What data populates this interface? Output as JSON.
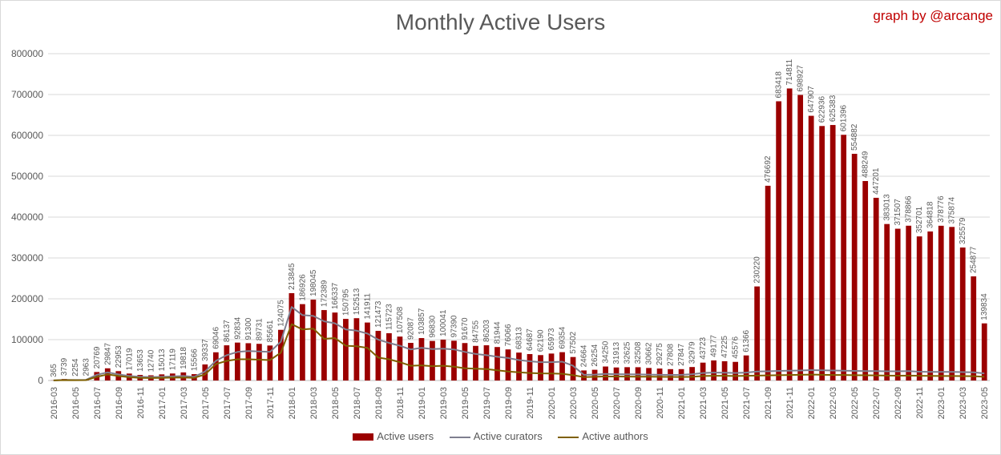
{
  "header": {
    "title": "Monthly Active Users",
    "credit": "graph by @arcange"
  },
  "colors": {
    "bars": "#9b0000",
    "curators": "#7f7f8f",
    "authors": "#7f6000",
    "grid": "#d9d9d9",
    "text": "#595959"
  },
  "legend": {
    "users": "Active users",
    "curators": "Active curators",
    "authors": "Active authors"
  },
  "chart_data": {
    "type": "bar",
    "title": "Monthly Active Users",
    "ylim": [
      0,
      800000
    ],
    "yticks": [
      "0",
      "100000",
      "200000",
      "300000",
      "400000",
      "500000",
      "600000",
      "700000",
      "800000"
    ],
    "grid": true,
    "legend_position": "bottom",
    "categories": [
      "2016-03",
      "2016-04",
      "2016-05",
      "2016-06",
      "2016-07",
      "2016-08",
      "2016-09",
      "2016-10",
      "2016-11",
      "2016-12",
      "2017-01",
      "2017-02",
      "2017-03",
      "2017-04",
      "2017-05",
      "2017-06",
      "2017-07",
      "2017-08",
      "2017-09",
      "2017-10",
      "2017-11",
      "2017-12",
      "2018-01",
      "2018-02",
      "2018-03",
      "2018-04",
      "2018-05",
      "2018-06",
      "2018-07",
      "2018-08",
      "2018-09",
      "2018-10",
      "2018-11",
      "2018-12",
      "2019-01",
      "2019-02",
      "2019-03",
      "2019-04",
      "2019-05",
      "2019-06",
      "2019-07",
      "2019-08",
      "2019-09",
      "2019-10",
      "2019-11",
      "2019-12",
      "2020-01",
      "2020-02",
      "2020-03",
      "2020-04",
      "2020-05",
      "2020-06",
      "2020-07",
      "2020-08",
      "2020-09",
      "2020-10",
      "2020-11",
      "2020-12",
      "2021-01",
      "2021-02",
      "2021-03",
      "2021-04",
      "2021-05",
      "2021-06",
      "2021-07",
      "2021-08",
      "2021-09",
      "2021-10",
      "2021-11",
      "2021-12",
      "2022-01",
      "2022-02",
      "2022-03",
      "2022-04",
      "2022-05",
      "2022-06",
      "2022-07",
      "2022-08",
      "2022-09",
      "2022-10",
      "2022-11",
      "2022-12",
      "2023-01",
      "2023-02",
      "2023-03",
      "2023-04",
      "2023-05"
    ],
    "series": [
      {
        "name": "Active users",
        "kind": "bar",
        "values": [
          365,
          3739,
          2254,
          2963,
          20769,
          29847,
          22953,
          17019,
          13653,
          12740,
          15013,
          17119,
          19818,
          15566,
          39337,
          69046,
          86137,
          92834,
          91300,
          89731,
          85661,
          124075,
          213845,
          186926,
          198045,
          172389,
          166337,
          150795,
          152513,
          141911,
          121473,
          115723,
          107508,
          92087,
          103857,
          96830,
          100041,
          97390,
          91670,
          84755,
          86203,
          81944,
          76066,
          68313,
          64687,
          62190,
          65973,
          69354,
          57502,
          24664,
          26254,
          34250,
          31913,
          32625,
          32508,
          30662,
          29275,
          27808,
          27847,
          32979,
          43723,
          49177,
          47225,
          45576,
          61366,
          230220,
          476692,
          683418,
          714811,
          698927,
          647907,
          622936,
          625383,
          601396,
          554882,
          488249,
          447201,
          383013,
          371507,
          378866,
          352701,
          364818,
          378776,
          375874,
          325579,
          254877,
          139834
        ]
      },
      {
        "name": "Active curators",
        "kind": "line",
        "values": [
          200,
          1500,
          1200,
          1600,
          14000,
          20000,
          15000,
          11000,
          9000,
          8500,
          9000,
          10000,
          11000,
          9000,
          22000,
          48000,
          62000,
          70000,
          72000,
          71000,
          70000,
          95000,
          180000,
          160000,
          158000,
          145000,
          140000,
          125000,
          122000,
          115000,
          100000,
          92000,
          85000,
          76000,
          80000,
          77000,
          78000,
          76000,
          70000,
          65000,
          62000,
          58000,
          55000,
          50000,
          47000,
          45000,
          45000,
          46000,
          36000,
          14000,
          14500,
          16000,
          15500,
          15200,
          15000,
          14500,
          14000,
          13800,
          14000,
          15500,
          18500,
          19500,
          19000,
          18500,
          19500,
          22000,
          22500,
          23500,
          24000,
          24500,
          25500,
          25000,
          24500,
          24000,
          23500,
          23000,
          23000,
          22500,
          22500,
          23000,
          21500,
          21000,
          21000,
          21000,
          20500,
          20000,
          17500
        ]
      },
      {
        "name": "Active authors",
        "kind": "line",
        "values": [
          100,
          900,
          700,
          1000,
          9000,
          15000,
          11000,
          8000,
          6500,
          6000,
          6500,
          7000,
          7500,
          6500,
          15000,
          40000,
          48000,
          52000,
          52000,
          51000,
          50000,
          68000,
          138000,
          125000,
          127000,
          102000,
          104000,
          85000,
          84000,
          80000,
          56000,
          52000,
          45000,
          36000,
          37000,
          35000,
          36000,
          34000,
          30000,
          29000,
          28000,
          25000,
          22000,
          20000,
          18500,
          17500,
          17000,
          16500,
          13000,
          8500,
          9000,
          10000,
          9800,
          9700,
          9500,
          9200,
          9000,
          8800,
          8700,
          9000,
          11000,
          11500,
          11500,
          11000,
          11500,
          12000,
          12500,
          13000,
          13500,
          14000,
          14500,
          14000,
          13500,
          13500,
          13000,
          12800,
          12500,
          12000,
          11800,
          12000,
          11500,
          11200,
          11000,
          11000,
          10800,
          10500,
          9000
        ]
      }
    ]
  }
}
